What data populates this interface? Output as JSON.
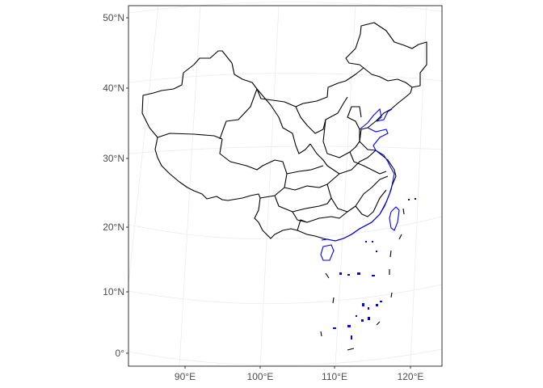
{
  "map": {
    "type": "province map",
    "y_axis_labels": [
      "50°N",
      "40°N",
      "30°N",
      "20°N",
      "10°N",
      "0°"
    ],
    "x_axis_labels": [
      "90°E",
      "100°E",
      "110°E",
      "120°E"
    ],
    "colors": {
      "province_border": "#000000",
      "coastline": "#0000ff",
      "grid": "#ebebeb",
      "panel_border": "#333333"
    }
  }
}
